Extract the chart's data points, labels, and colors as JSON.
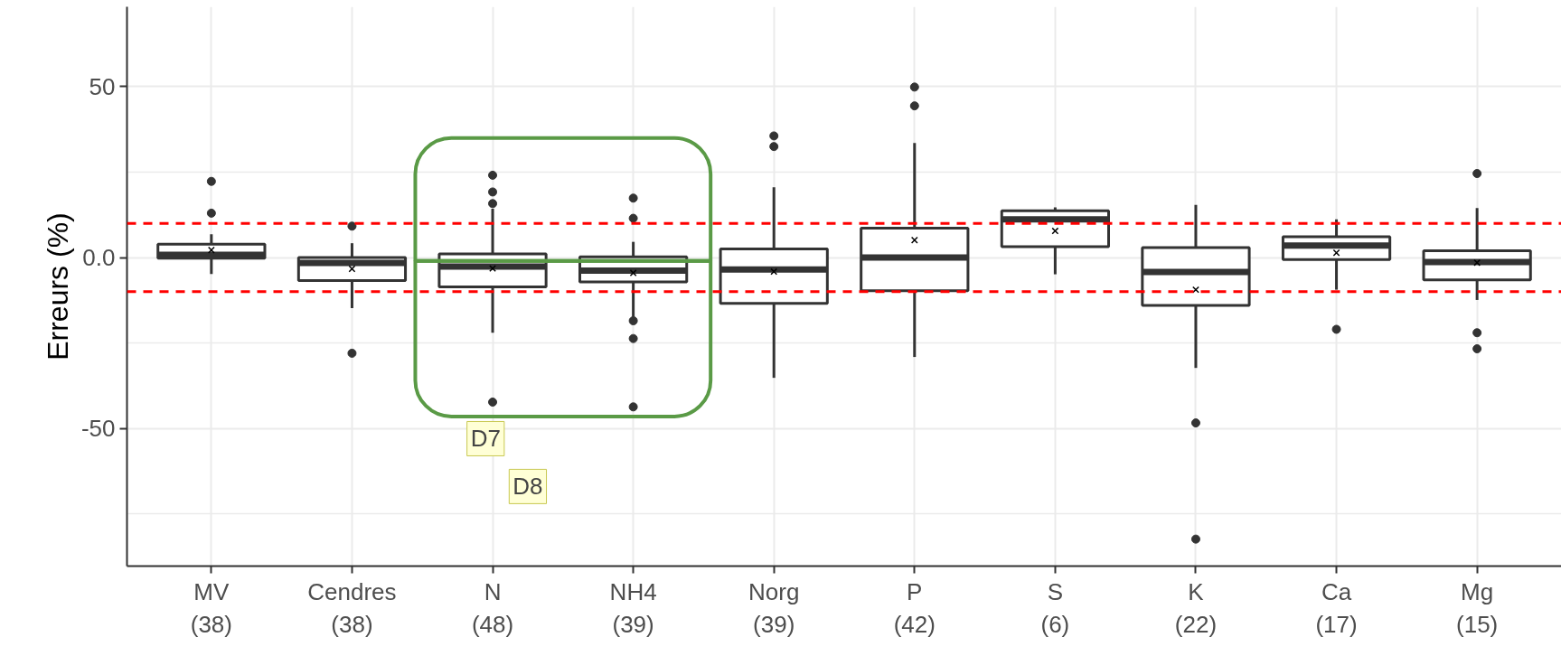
{
  "chart_data": {
    "type": "box",
    "ylabel": "Erreurs (%)",
    "categories": [
      "MV\n(38)",
      "Cendres\n(38)",
      "N\n(48)",
      "NH4\n(39)",
      "Norg\n(39)",
      "P\n(42)",
      "S\n(6)",
      "K\n(22)",
      "Ca\n(17)",
      "Mg\n(15)"
    ],
    "boxes": [
      {
        "low": -4.8,
        "q1": -0.2,
        "median": 0.8,
        "q3": 3.9,
        "high": 6.8,
        "mean": 2.2,
        "outliers": [
          13.0,
          22.3
        ]
      },
      {
        "low": -14.8,
        "q1": -6.7,
        "median": -1.6,
        "q3": 0.0,
        "high": 4.2,
        "mean": -3.3,
        "outliers": [
          9.2,
          -28.0
        ]
      },
      {
        "low": -22.0,
        "q1": -8.6,
        "median": -2.6,
        "q3": 1.1,
        "high": 14.3,
        "mean": -3.2,
        "outliers": [
          24.1,
          19.2,
          15.8,
          -42.3
        ]
      },
      {
        "low": -17.4,
        "q1": -7.1,
        "median": -3.8,
        "q3": 0.2,
        "high": 4.6,
        "mean": -4.5,
        "outliers": [
          17.4,
          11.5,
          -18.5,
          -23.7,
          -43.7
        ]
      },
      {
        "low": -35.2,
        "q1": -13.4,
        "median": -3.5,
        "q3": 2.5,
        "high": 20.6,
        "mean": -4.1,
        "outliers": [
          35.6,
          32.5
        ]
      },
      {
        "low": -29.1,
        "q1": -9.7,
        "median": 0.0,
        "q3": 8.6,
        "high": 33.5,
        "mean": 5.1,
        "outliers": [
          49.9,
          44.4
        ]
      },
      {
        "low": -4.9,
        "q1": 3.2,
        "median": 11.2,
        "q3": 13.7,
        "high": 14.7,
        "mean": 7.8
      },
      {
        "low": -32.3,
        "q1": -14.0,
        "median": -4.2,
        "q3": 2.9,
        "high": 15.4,
        "mean": -9.4,
        "outliers": [
          -48.4,
          -82.4
        ]
      },
      {
        "low": -9.4,
        "q1": -0.6,
        "median": 3.5,
        "q3": 6.1,
        "high": 11.2,
        "mean": 1.4,
        "outliers": [
          -21.0
        ]
      },
      {
        "low": -12.4,
        "q1": -6.5,
        "median": -1.3,
        "q3": 2.0,
        "high": 14.5,
        "mean": -1.5,
        "outliers": [
          24.6,
          -22.0,
          -26.7
        ]
      }
    ],
    "ylim": [
      -90.3,
      73.4
    ],
    "yticks": [
      -50,
      {
        "value": 0,
        "label": "0.0"
      },
      50,
      {
        "value": -75,
        "label": null
      },
      {
        "value": -25,
        "label": null
      },
      {
        "value": 25,
        "label": null
      }
    ],
    "grid": true,
    "ref_lines": [
      {
        "axis": "y",
        "value": 10,
        "color": "#ff0000",
        "line_style": "dashed"
      },
      {
        "axis": "y",
        "value": -10,
        "color": "#ff0000",
        "line_style": "dashed"
      }
    ],
    "annotations": [
      "D7",
      "D8"
    ]
  }
}
